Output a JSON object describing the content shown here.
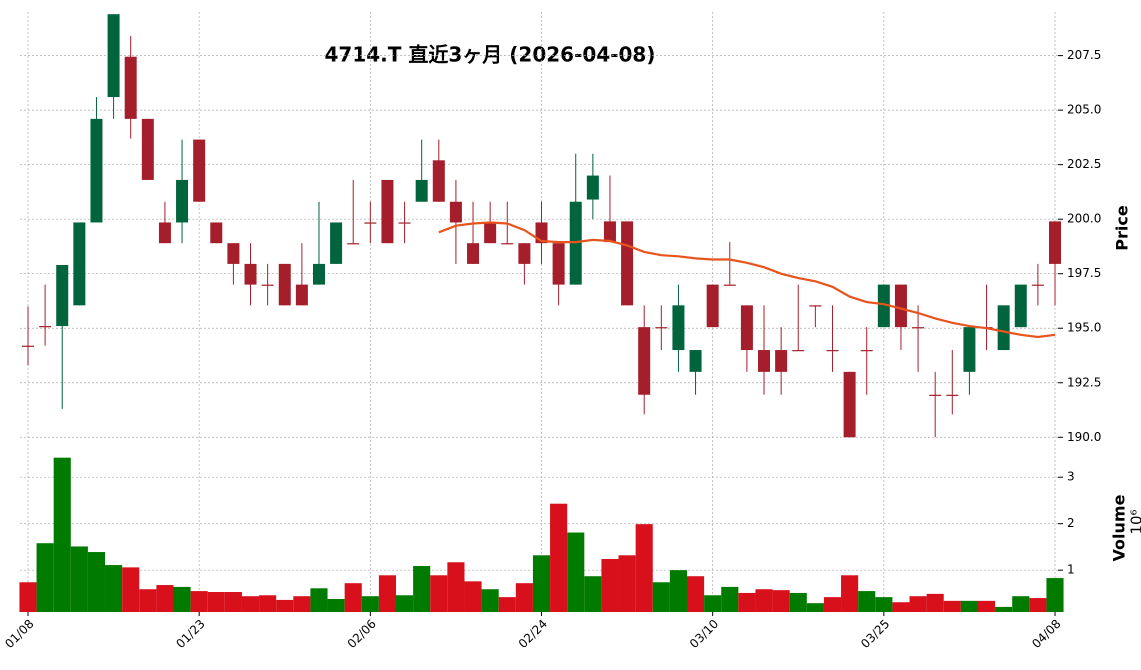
{
  "chart_data": {
    "type": "candlestick",
    "title": "4714.T  直近3ヶ月  (2026-04-08)",
    "ylabel": "Price",
    "categories": [
      "01/08",
      null,
      null,
      null,
      null,
      null,
      null,
      null,
      null,
      null,
      "01/23",
      null,
      null,
      null,
      null,
      null,
      null,
      null,
      null,
      null,
      "02/06",
      null,
      null,
      null,
      null,
      null,
      null,
      null,
      null,
      null,
      "02/24",
      null,
      null,
      null,
      null,
      null,
      null,
      null,
      null,
      null,
      "03/10",
      null,
      null,
      null,
      null,
      null,
      null,
      null,
      null,
      null,
      "03/25",
      null,
      null,
      null,
      null,
      null,
      null,
      null,
      null,
      null,
      "04/08"
    ],
    "open": [
      194.2,
      195.1,
      195.1,
      196.05,
      199.85,
      205.6,
      207.45,
      204.6,
      199.85,
      199.85,
      203.65,
      199.85,
      198.9,
      197.95,
      197.0,
      197.95,
      197.0,
      197.0,
      197.95,
      198.9,
      199.85,
      201.8,
      199.85,
      200.8,
      202.7,
      200.8,
      198.9,
      199.85,
      198.9,
      198.9,
      199.85,
      198.9,
      197.0,
      200.9,
      199.9,
      199.9,
      195.05,
      195.05,
      194.0,
      193.0,
      197.0,
      197.0,
      196.05,
      194.0,
      194.0,
      194.0,
      196.05,
      194.0,
      193.0,
      194.0,
      195.05,
      197.0,
      195.05,
      191.95,
      191.95,
      193.0,
      195.05,
      194.0,
      195.05,
      197.0,
      199.9
    ],
    "high": [
      196.0,
      197.0,
      197.9,
      199.85,
      205.6,
      209.4,
      208.4,
      204.6,
      200.8,
      203.65,
      203.65,
      199.85,
      198.9,
      198.9,
      197.95,
      197.95,
      198.9,
      200.8,
      199.85,
      201.8,
      200.8,
      201.8,
      200.8,
      203.65,
      203.65,
      201.8,
      200.8,
      200.8,
      200.8,
      198.9,
      200.8,
      198.9,
      203.0,
      203.0,
      202.0,
      199.9,
      196.05,
      196.05,
      197.0,
      194.0,
      197.0,
      198.95,
      196.05,
      196.05,
      195.05,
      197.0,
      196.05,
      196.05,
      193.0,
      195.05,
      197.0,
      197.0,
      196.05,
      193.0,
      194.0,
      195.05,
      197.0,
      196.05,
      197.0,
      197.95,
      199.9
    ],
    "low": [
      193.3,
      194.2,
      191.3,
      196.05,
      199.85,
      204.6,
      203.7,
      201.8,
      198.9,
      198.9,
      200.8,
      198.9,
      197.0,
      196.05,
      196.05,
      196.05,
      196.05,
      197.0,
      197.95,
      198.85,
      198.9,
      198.9,
      198.9,
      200.8,
      200.8,
      197.95,
      197.95,
      198.9,
      198.85,
      197.0,
      197.95,
      196.05,
      197.0,
      200.0,
      198.95,
      196.05,
      191.05,
      194.0,
      193.0,
      191.95,
      195.05,
      197.0,
      193.0,
      191.95,
      191.95,
      194.0,
      195.05,
      193.0,
      190.0,
      191.95,
      195.05,
      194.0,
      193.0,
      190.0,
      191.05,
      191.95,
      194.0,
      194.0,
      195.05,
      196.05,
      196.05
    ],
    "close": [
      194.2,
      195.1,
      197.9,
      199.85,
      204.6,
      209.4,
      204.6,
      201.8,
      198.9,
      201.8,
      200.8,
      198.9,
      197.95,
      197.0,
      197.0,
      196.05,
      196.05,
      197.95,
      199.85,
      198.85,
      199.85,
      198.9,
      199.85,
      201.8,
      200.8,
      199.85,
      197.95,
      198.9,
      198.85,
      197.95,
      198.9,
      197.0,
      200.8,
      202.0,
      198.95,
      196.05,
      191.95,
      195.05,
      196.05,
      194.0,
      195.05,
      197.0,
      194.0,
      193.0,
      193.0,
      194.0,
      196.05,
      194.0,
      190.0,
      194.0,
      197.0,
      195.05,
      195.0,
      191.95,
      191.9,
      195.05,
      195.0,
      196.05,
      197.0,
      196.95,
      197.95
    ],
    "ma": {
      "color": "#e8541c",
      "values": [
        null,
        null,
        null,
        null,
        null,
        null,
        null,
        null,
        null,
        null,
        null,
        null,
        null,
        null,
        null,
        null,
        null,
        null,
        null,
        null,
        null,
        null,
        null,
        null,
        199.4,
        199.7,
        199.8,
        199.85,
        199.8,
        199.5,
        199.0,
        198.95,
        198.95,
        199.05,
        199.0,
        198.8,
        198.5,
        198.35,
        198.3,
        198.2,
        198.15,
        198.15,
        198.0,
        197.8,
        197.5,
        197.3,
        197.15,
        196.9,
        196.45,
        196.2,
        196.1,
        195.9,
        195.7,
        195.45,
        195.25,
        195.1,
        195.0,
        194.85,
        194.7,
        194.6,
        194.7
      ]
    },
    "ylim": [
      189.6,
      209.5
    ],
    "yticks": [
      {
        "value": 190,
        "label": "190.0"
      },
      {
        "value": 192.5,
        "label": "192.5"
      },
      {
        "value": 195,
        "label": "195.0"
      },
      {
        "value": 197.5,
        "label": "197.5"
      },
      {
        "value": 200,
        "label": "200.0"
      },
      {
        "value": 202.5,
        "label": "202.5"
      },
      {
        "value": 205,
        "label": "205.0"
      },
      {
        "value": 207.5,
        "label": "207.5"
      }
    ],
    "colors": {
      "up": "#00643c",
      "down": "#a41f2b",
      "volume_up": "#007b00",
      "volume_down": "#d8101c"
    },
    "grid": true,
    "volume": {
      "label": "Volume",
      "offset_label": "10⁶",
      "values": [
        0.74,
        1.58,
        3.42,
        1.51,
        1.39,
        1.11,
        1.06,
        0.59,
        0.68,
        0.64,
        0.55,
        0.53,
        0.53,
        0.44,
        0.46,
        0.36,
        0.44,
        0.61,
        0.38,
        0.72,
        0.44,
        0.89,
        0.46,
        1.09,
        0.89,
        1.17,
        0.76,
        0.59,
        0.42,
        0.72,
        1.32,
        2.43,
        1.81,
        0.87,
        1.24,
        1.32,
        1.99,
        0.74,
        1.0,
        0.87,
        0.46,
        0.64,
        0.51,
        0.59,
        0.57,
        0.51,
        0.29,
        0.42,
        0.89,
        0.55,
        0.42,
        0.31,
        0.44,
        0.49,
        0.34,
        0.34,
        0.34,
        0.21,
        0.44,
        0.4,
        0.83
      ],
      "ylim": [
        0.1,
        3.65
      ],
      "yticks": [
        1,
        2,
        3
      ]
    }
  }
}
